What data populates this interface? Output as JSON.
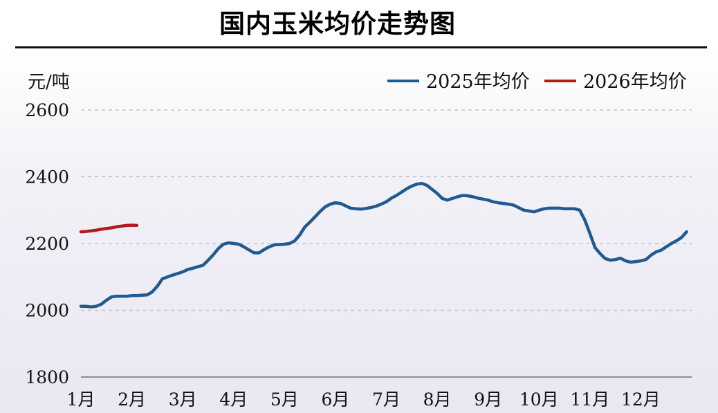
{
  "page": {
    "title": "国内玉米均价走势图"
  },
  "chart_data": {
    "type": "line",
    "ylabel": "元/吨",
    "ylim": [
      1800,
      2600
    ],
    "yticks": [
      1800,
      2000,
      2200,
      2400,
      2600
    ],
    "grid": true,
    "legend_position": "top-right",
    "x_tick_labels": [
      "1月",
      "2月",
      "3月",
      "4月",
      "5月",
      "6月",
      "7月",
      "8月",
      "9月",
      "10月",
      "11月",
      "12月"
    ],
    "x_unit": "month (1 = 1月 start, 13 = end of 12月)",
    "series": [
      {
        "name": "2025年均价",
        "color": "#1f5b92",
        "x": [
          1.0,
          1.1,
          1.2,
          1.3,
          1.4,
          1.5,
          1.6,
          1.7,
          1.8,
          1.9,
          2.0,
          2.1,
          2.2,
          2.3,
          2.4,
          2.5,
          2.6,
          2.7,
          2.8,
          3.0,
          3.1,
          3.2,
          3.4,
          3.5,
          3.6,
          3.7,
          3.8,
          3.9,
          4.0,
          4.1,
          4.2,
          4.4,
          4.5,
          4.6,
          4.7,
          4.8,
          5.0,
          5.1,
          5.2,
          5.3,
          5.4,
          5.5,
          5.6,
          5.7,
          5.8,
          5.9,
          6.0,
          6.1,
          6.3,
          6.4,
          6.5,
          6.6,
          6.7,
          6.8,
          6.9,
          7.0,
          7.1,
          7.2,
          7.3,
          7.4,
          7.5,
          7.6,
          7.7,
          7.8,
          7.9,
          8.0,
          8.1,
          8.2,
          8.4,
          8.5,
          8.6,
          8.7,
          8.8,
          9.0,
          9.1,
          9.2,
          9.3,
          9.4,
          9.5,
          9.7,
          9.9,
          10.0,
          10.1,
          10.2,
          10.3,
          10.4,
          10.5,
          10.6,
          10.7,
          10.8,
          10.9,
          11.0,
          11.1,
          11.2,
          11.3,
          11.4,
          11.5,
          11.6,
          11.7,
          11.8,
          11.9,
          12.0,
          12.1,
          12.2,
          12.3,
          12.4,
          12.5,
          12.6,
          12.7,
          12.8,
          12.9
        ],
        "values": [
          2012,
          2012,
          2010,
          2012,
          2018,
          2030,
          2040,
          2042,
          2042,
          2042,
          2044,
          2044,
          2045,
          2046,
          2055,
          2072,
          2094,
          2100,
          2105,
          2115,
          2122,
          2126,
          2135,
          2150,
          2166,
          2185,
          2198,
          2202,
          2200,
          2198,
          2190,
          2172,
          2172,
          2182,
          2190,
          2196,
          2198,
          2200,
          2208,
          2226,
          2250,
          2264,
          2280,
          2296,
          2310,
          2318,
          2322,
          2320,
          2306,
          2304,
          2303,
          2305,
          2308,
          2312,
          2318,
          2325,
          2336,
          2344,
          2354,
          2364,
          2372,
          2378,
          2380,
          2374,
          2362,
          2350,
          2335,
          2330,
          2340,
          2344,
          2343,
          2340,
          2336,
          2330,
          2325,
          2322,
          2320,
          2318,
          2315,
          2300,
          2295,
          2300,
          2304,
          2306,
          2306,
          2306,
          2304,
          2304,
          2304,
          2300,
          2270,
          2230,
          2188,
          2170,
          2155,
          2150,
          2152,
          2156,
          2148,
          2144,
          2146,
          2148,
          2152,
          2165,
          2175,
          2180,
          2190,
          2200,
          2208,
          2218,
          2235
        ]
      },
      {
        "name": "2026年均价",
        "color": "#b31b1b",
        "x": [
          1.0,
          1.1,
          1.2,
          1.3,
          1.4,
          1.5,
          1.6,
          1.7,
          1.8,
          1.9,
          2.0,
          2.1
        ],
        "values": [
          2235,
          2236,
          2238,
          2240,
          2243,
          2245,
          2247,
          2250,
          2252,
          2254,
          2255,
          2254
        ]
      }
    ]
  }
}
